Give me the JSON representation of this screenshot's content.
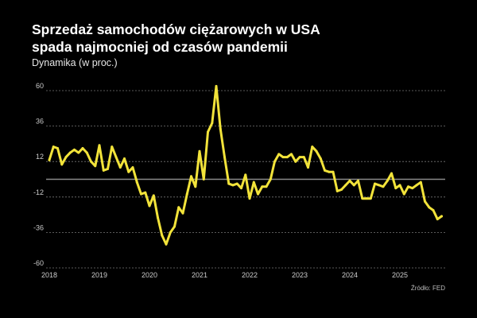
{
  "chart_data": {
    "type": "line",
    "title": "Sprzedaż samochodów ciężarowych w USA spada najmocniej od czasów pandemii",
    "title_lines": [
      "Sprzedaż samochodów ciężarowych w USA",
      "spada najmocniej od czasów pandemii"
    ],
    "subtitle": "Dynamika (w proc.)",
    "source": "Źródło: FED",
    "xlabel": "",
    "ylabel": "",
    "ylim": [
      -60,
      60
    ],
    "yticks": [
      60,
      36,
      12,
      -12,
      -36,
      -60
    ],
    "xticks": [
      "2018",
      "2019",
      "2020",
      "2021",
      "2022",
      "2023",
      "2024",
      "2025"
    ],
    "x_start": "2018-01",
    "x_frequency": "monthly",
    "grid": true,
    "colors": {
      "line": "#f2e33a",
      "background": "#000000",
      "zero_line": "#8a8a8a",
      "grid": "#777777"
    },
    "series": [
      {
        "values": [
          13,
          22,
          21,
          10,
          15,
          18,
          20,
          18,
          21,
          18,
          12,
          9,
          23,
          6,
          7,
          22,
          15,
          8,
          14,
          5,
          8,
          -2,
          -10,
          -9,
          -18,
          -11,
          -26,
          -38,
          -44,
          -36,
          -32,
          -19,
          -23,
          -10,
          2,
          -5,
          19,
          0,
          32,
          38,
          63,
          34,
          15,
          -3,
          -4,
          -3,
          -6,
          3,
          -13,
          -2,
          -10,
          -5,
          -5,
          0,
          12,
          17,
          15,
          15,
          17,
          12,
          15,
          15,
          8,
          22,
          19,
          14,
          6,
          5,
          5,
          -8,
          -7,
          -4,
          -1,
          -4,
          -1,
          -13,
          -13,
          -13,
          -3,
          -4,
          -5,
          -1,
          4,
          -6,
          -4,
          -10,
          -5,
          -6,
          -4,
          -2,
          -15,
          -19,
          -21,
          -27,
          -25
        ]
      }
    ]
  }
}
